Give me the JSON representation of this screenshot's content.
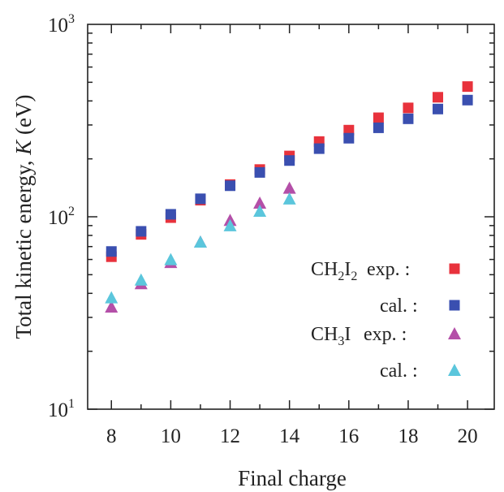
{
  "chart_data": {
    "type": "scatter",
    "xlabel": "Final charge",
    "ylabel": "Total kinetic energy, ",
    "ylabel_symbol": "K",
    "ylabel_unit": " (eV)",
    "x_ticks": [
      8,
      10,
      12,
      14,
      16,
      18,
      20
    ],
    "x_tick_labels": [
      "8",
      "10",
      "12",
      "14",
      "16",
      "18",
      "20"
    ],
    "xlim": [
      7.2,
      20.9
    ],
    "y_scale": "log",
    "ylim": [
      10,
      1000
    ],
    "y_tick_mantissa": "10",
    "y_ticks": [
      {
        "value": 10,
        "exp": "1"
      },
      {
        "value": 100,
        "exp": "2"
      },
      {
        "value": 1000,
        "exp": "3"
      }
    ],
    "grid": false,
    "legend_position": "bottom-right",
    "series": [
      {
        "group": "CH₂I₂",
        "group_label": "CH",
        "group_sub1": "2",
        "group_mid": "I",
        "group_sub2": "2",
        "name": "exp. :",
        "marker": "square",
        "color": "#e8323c",
        "x": [
          8,
          9,
          10,
          11,
          12,
          13,
          14,
          15,
          16,
          17,
          18,
          19,
          20
        ],
        "y": [
          62,
          81,
          99,
          122,
          147,
          176,
          207,
          246,
          282,
          327,
          368,
          418,
          475
        ]
      },
      {
        "group": "CH₂I₂",
        "name": "cal. :",
        "marker": "square",
        "color": "#3a4fb0",
        "x": [
          8,
          9,
          10,
          11,
          12,
          13,
          14,
          15,
          16,
          17,
          18,
          19,
          20
        ],
        "y": [
          66,
          84,
          103,
          124,
          145,
          170,
          196,
          226,
          256,
          290,
          323,
          363,
          404
        ]
      },
      {
        "group": "CH₃I",
        "group_label": "CH",
        "group_sub1": "3",
        "group_mid": "I",
        "group_sub2": "",
        "name": "exp. :",
        "marker": "triangle",
        "color": "#b44fa8",
        "x": [
          8,
          9,
          10,
          11,
          12,
          13,
          14
        ],
        "y": [
          34,
          45,
          58,
          74,
          96,
          118,
          141
        ]
      },
      {
        "group": "CH₃I",
        "name": "cal. :",
        "marker": "triangle",
        "color": "#5bc6dc",
        "x": [
          8,
          9,
          10,
          11,
          12,
          13,
          14
        ],
        "y": [
          38,
          47,
          60,
          74,
          90,
          107,
          124
        ]
      }
    ]
  }
}
